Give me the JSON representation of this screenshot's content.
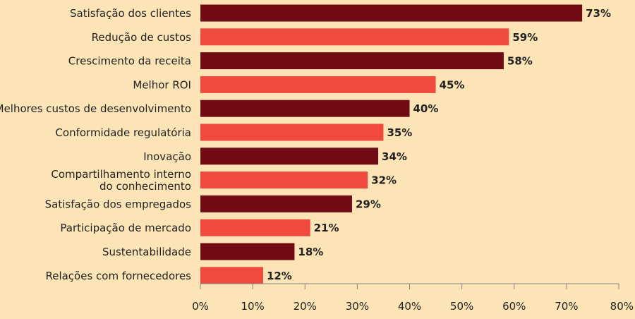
{
  "chart_data": {
    "type": "bar",
    "orientation": "horizontal",
    "title": "",
    "xlabel": "",
    "ylabel": "",
    "xlim": [
      0,
      80
    ],
    "x_ticks": [
      0,
      10,
      20,
      30,
      40,
      50,
      60,
      70,
      80
    ],
    "x_tick_labels": [
      "0%",
      "10%",
      "20%",
      "30%",
      "40%",
      "50%",
      "60%",
      "70%",
      "80%"
    ],
    "grid": false,
    "legend": "none",
    "categories": [
      [
        "Satisfação dos clientes"
      ],
      [
        "Redução de custos"
      ],
      [
        "Crescimento da receita"
      ],
      [
        "Melhor ROI"
      ],
      [
        "Melhores custos de desenvolvimento"
      ],
      [
        "Conformidade regulatória"
      ],
      [
        "Inovação"
      ],
      [
        "Compartilhamento interno",
        "do conhecimento"
      ],
      [
        "Satisfação dos empregados"
      ],
      [
        "Participação de mercado"
      ],
      [
        "Sustentabilidade"
      ],
      [
        "Relações com fornecedores"
      ]
    ],
    "values": [
      73,
      59,
      58,
      45,
      40,
      35,
      34,
      32,
      29,
      21,
      18,
      12
    ],
    "value_labels": [
      "73%",
      "59%",
      "58%",
      "45%",
      "40%",
      "35%",
      "34%",
      "32%",
      "29%",
      "21%",
      "18%",
      "12%"
    ],
    "colors": {
      "background": "#fce4b6",
      "bar_dark": "#720c14",
      "bar_light": "#f04a3f",
      "axis": "#888888",
      "text": "#222222"
    }
  }
}
